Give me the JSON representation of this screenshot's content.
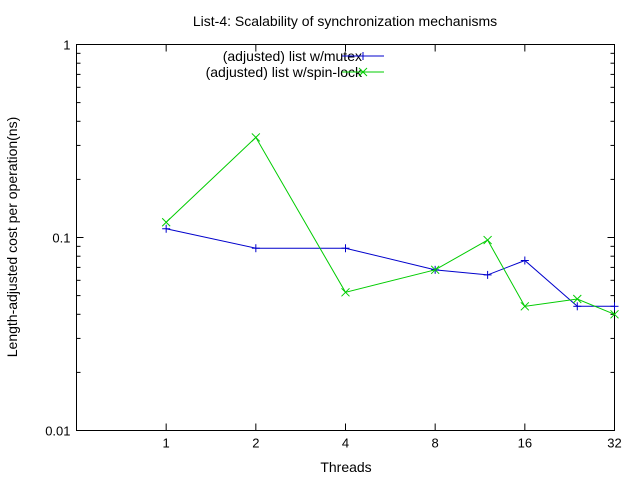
{
  "chart_data": {
    "type": "line",
    "title": "List-4: Scalability of synchronization mechanisms",
    "xlabel": "Threads",
    "ylabel": "Length-adjusted cost per operation(ns)",
    "xscale": "log2",
    "yscale": "log10",
    "xlim": [
      0.5,
      32
    ],
    "ylim": [
      0.01,
      1
    ],
    "x_ticks": [
      1,
      2,
      4,
      8,
      16,
      32
    ],
    "x_tick_labels": [
      "1",
      "2",
      "4",
      "8",
      "16",
      "32"
    ],
    "y_ticks": [
      0.01,
      0.1,
      1
    ],
    "y_tick_labels": [
      "0.01",
      "0.1",
      "1"
    ],
    "grid": false,
    "legend_position": "top-left",
    "series": [
      {
        "name": "(adjusted) list w/mutex",
        "color": "#0000cc",
        "marker": "plus",
        "x": [
          1,
          2,
          4,
          8,
          12,
          16,
          24,
          32
        ],
        "y": [
          0.111,
          0.088,
          0.088,
          0.068,
          0.064,
          0.076,
          0.044,
          0.044
        ]
      },
      {
        "name": "(adjusted) list w/spin-lock",
        "color": "#00cc00",
        "marker": "cross",
        "x": [
          1,
          2,
          4,
          8,
          12,
          16,
          24,
          32
        ],
        "y": [
          0.12,
          0.33,
          0.052,
          0.068,
          0.097,
          0.044,
          0.048,
          0.04
        ]
      }
    ]
  }
}
